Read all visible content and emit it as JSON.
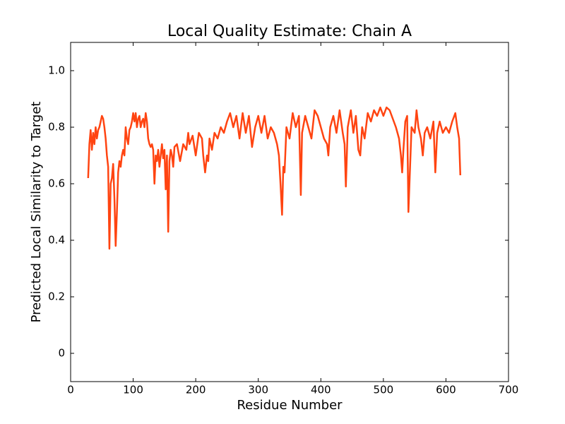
{
  "chart_data": {
    "type": "line",
    "title": "Local Quality Estimate: Chain A",
    "x_label": "Residue Number",
    "y_label": "Predicted Local Similarity to Target",
    "xlim": [
      0,
      700
    ],
    "xticks": [
      0,
      100,
      200,
      300,
      400,
      500,
      600,
      700
    ],
    "ylim": [
      -0.1,
      1.1
    ],
    "yticks": [
      0.0,
      0.2,
      0.4,
      0.6,
      0.8,
      {
        "value": 1.0,
        "label": "1.0"
      }
    ],
    "grid": false,
    "x": [
      28,
      30,
      32,
      34,
      36,
      38,
      40,
      42,
      44,
      46,
      48,
      50,
      52,
      54,
      56,
      58,
      60,
      62,
      64,
      66,
      68,
      70,
      72,
      74,
      76,
      78,
      80,
      82,
      84,
      86,
      88,
      90,
      92,
      94,
      96,
      98,
      100,
      102,
      104,
      106,
      108,
      110,
      112,
      114,
      116,
      118,
      120,
      122,
      124,
      126,
      128,
      130,
      132,
      134,
      136,
      138,
      140,
      142,
      144,
      146,
      148,
      150,
      152,
      154,
      156,
      158,
      160,
      162,
      164,
      166,
      170,
      175,
      180,
      185,
      188,
      190,
      195,
      200,
      205,
      210,
      212,
      215,
      218,
      220,
      222,
      226,
      230,
      235,
      240,
      245,
      250,
      255,
      260,
      265,
      270,
      275,
      280,
      285,
      290,
      295,
      300,
      305,
      310,
      315,
      320,
      325,
      330,
      333,
      336,
      338,
      340,
      342,
      345,
      350,
      355,
      360,
      365,
      368,
      370,
      375,
      380,
      385,
      390,
      395,
      400,
      405,
      410,
      412,
      415,
      420,
      425,
      430,
      435,
      438,
      440,
      443,
      448,
      452,
      456,
      460,
      463,
      466,
      470,
      475,
      480,
      485,
      490,
      495,
      500,
      505,
      510,
      515,
      520,
      525,
      528,
      530,
      532,
      535,
      538,
      540,
      542,
      545,
      550,
      553,
      556,
      560,
      563,
      566,
      570,
      575,
      580,
      583,
      586,
      590,
      595,
      600,
      605,
      610,
      615,
      618,
      621,
      623
    ],
    "series": [
      {
        "name": "Chain A",
        "color": "#ff4411",
        "values": [
          0.62,
          0.74,
          0.79,
          0.72,
          0.78,
          0.74,
          0.8,
          0.76,
          0.79,
          0.8,
          0.82,
          0.84,
          0.83,
          0.8,
          0.76,
          0.7,
          0.66,
          0.37,
          0.6,
          0.62,
          0.67,
          0.55,
          0.38,
          0.5,
          0.64,
          0.68,
          0.66,
          0.7,
          0.72,
          0.7,
          0.8,
          0.76,
          0.74,
          0.79,
          0.8,
          0.82,
          0.85,
          0.82,
          0.85,
          0.8,
          0.83,
          0.84,
          0.8,
          0.82,
          0.83,
          0.8,
          0.85,
          0.82,
          0.76,
          0.74,
          0.73,
          0.74,
          0.72,
          0.6,
          0.7,
          0.68,
          0.72,
          0.66,
          0.7,
          0.74,
          0.69,
          0.72,
          0.58,
          0.7,
          0.43,
          0.68,
          0.72,
          0.7,
          0.66,
          0.73,
          0.74,
          0.68,
          0.74,
          0.72,
          0.78,
          0.74,
          0.77,
          0.7,
          0.78,
          0.76,
          0.7,
          0.64,
          0.7,
          0.68,
          0.76,
          0.72,
          0.78,
          0.76,
          0.8,
          0.78,
          0.82,
          0.85,
          0.8,
          0.84,
          0.76,
          0.85,
          0.78,
          0.84,
          0.73,
          0.8,
          0.84,
          0.78,
          0.84,
          0.76,
          0.8,
          0.78,
          0.74,
          0.7,
          0.58,
          0.49,
          0.66,
          0.64,
          0.8,
          0.76,
          0.85,
          0.8,
          0.84,
          0.56,
          0.78,
          0.84,
          0.8,
          0.76,
          0.86,
          0.84,
          0.8,
          0.76,
          0.74,
          0.7,
          0.8,
          0.84,
          0.78,
          0.86,
          0.78,
          0.74,
          0.59,
          0.8,
          0.86,
          0.78,
          0.84,
          0.72,
          0.7,
          0.8,
          0.76,
          0.85,
          0.82,
          0.86,
          0.84,
          0.87,
          0.84,
          0.87,
          0.86,
          0.83,
          0.8,
          0.76,
          0.7,
          0.64,
          0.72,
          0.82,
          0.84,
          0.5,
          0.62,
          0.8,
          0.78,
          0.86,
          0.8,
          0.76,
          0.7,
          0.78,
          0.8,
          0.76,
          0.82,
          0.64,
          0.78,
          0.82,
          0.78,
          0.8,
          0.78,
          0.82,
          0.85,
          0.8,
          0.76,
          0.63
        ]
      }
    ]
  }
}
